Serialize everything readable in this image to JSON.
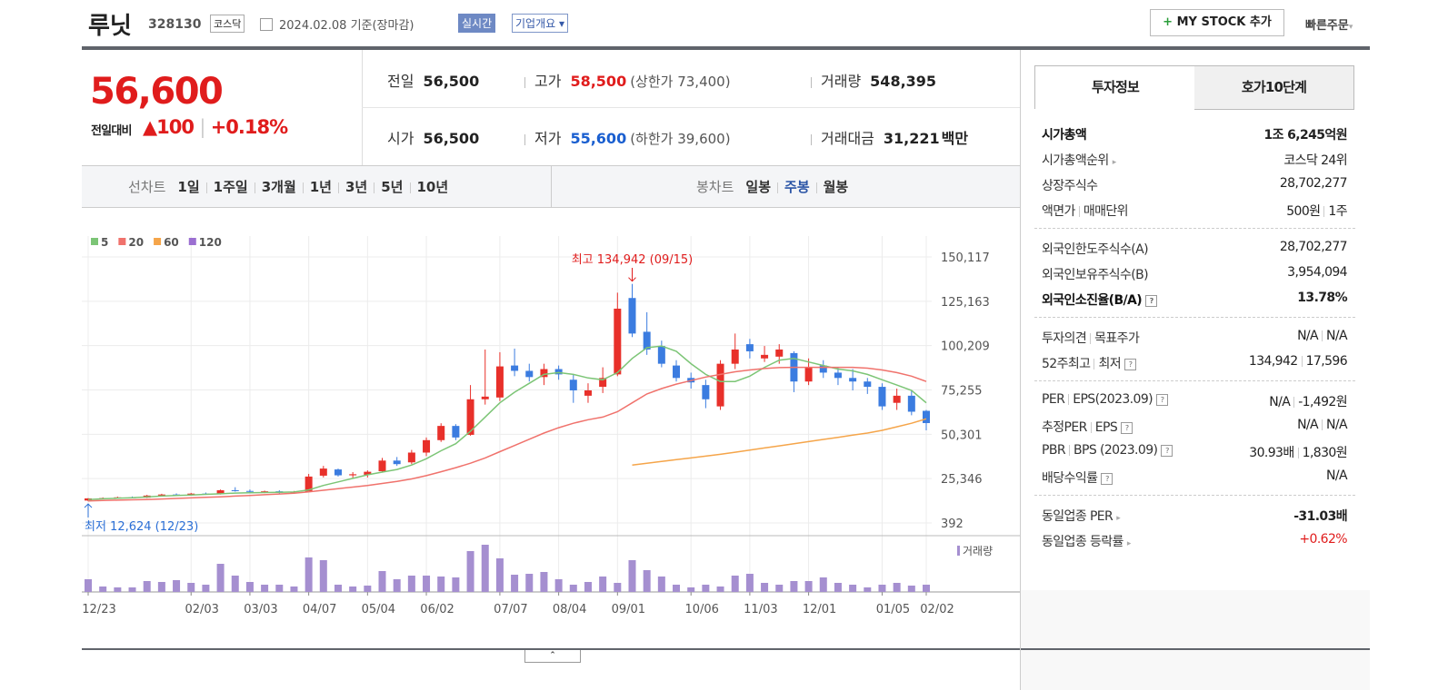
{
  "header": {
    "name": "루닛",
    "code": "328130",
    "market": "코스닥",
    "date": "2024.02.08 기준(장마감)",
    "realtime": "실시간",
    "overview": "기업개요",
    "mystock": "MY STOCK 추가",
    "quick_order": "빠른주문"
  },
  "quote": {
    "price": "56,600",
    "change_label": "전일대비",
    "change": "100",
    "change_rate": "+0.18%"
  },
  "summary": [
    {
      "label": "전일",
      "value": "56,500"
    },
    {
      "label": "고가",
      "value": "58,500",
      "sub": "(상한가 73,400)"
    },
    {
      "label": "거래량",
      "value": "548,395"
    },
    {
      "label": "시가",
      "value": "56,500"
    },
    {
      "label": "저가",
      "value": "55,600",
      "sub": "(하한가 39,600)"
    },
    {
      "label": "거래대금",
      "value": "31,221",
      "unit": "백만"
    }
  ],
  "line_tabs": {
    "title": "선차트",
    "items": [
      "1일",
      "1주일",
      "3개월",
      "1년",
      "3년",
      "5년",
      "10년"
    ]
  },
  "candle_tabs": {
    "title": "봉차트",
    "items": [
      "일봉",
      "주봉",
      "월봉"
    ],
    "active": 1
  },
  "chart": {
    "type": "candlestick",
    "up_color": "#e8302a",
    "down_color": "#3b7ce0",
    "volume_color": "#a58fd0",
    "volume_label": "거래량",
    "grid": true,
    "high_note": "최고 134,942 (09/15)",
    "low_note": "최저 12,624 (12/23)",
    "ylim": [
      -5740,
      161870
    ],
    "yticks": [
      {
        "value": 150117,
        "label": "150,117"
      },
      {
        "value": 125163,
        "label": "125,163"
      },
      {
        "value": 100209,
        "label": "100,209"
      },
      {
        "value": 75255,
        "label": "75,255"
      },
      {
        "value": 50301,
        "label": "50,301"
      },
      {
        "value": 25346,
        "label": "25,346"
      },
      392
    ],
    "volume_ylim": [
      0,
      60
    ],
    "categories": [
      "12/23",
      null,
      null,
      null,
      null,
      null,
      null,
      "02/03",
      null,
      null,
      null,
      "03/03",
      null,
      null,
      null,
      "04/07",
      null,
      null,
      null,
      "05/04",
      null,
      null,
      null,
      "06/02",
      null,
      null,
      null,
      null,
      "07/07",
      null,
      null,
      null,
      "08/04",
      null,
      null,
      null,
      "09/01",
      null,
      null,
      null,
      null,
      "10/06",
      null,
      null,
      null,
      "11/03",
      null,
      null,
      null,
      "12/01",
      null,
      null,
      null,
      null,
      "01/05",
      null,
      null,
      "02/02"
    ],
    "candles": [
      [
        13000,
        14400,
        12624,
        14200
      ],
      [
        14100,
        14800,
        13700,
        14400
      ],
      [
        14400,
        15200,
        14000,
        14800
      ],
      [
        14800,
        15300,
        14300,
        14500
      ],
      [
        14600,
        16200,
        14400,
        15800
      ],
      [
        15800,
        16800,
        15300,
        16400
      ],
      [
        16400,
        17000,
        15700,
        16000
      ],
      [
        16000,
        17300,
        15800,
        16900
      ],
      [
        16900,
        17500,
        16200,
        16600
      ],
      [
        16600,
        19200,
        16400,
        18800
      ],
      [
        18800,
        20500,
        18000,
        18400
      ],
      [
        18400,
        19200,
        17600,
        17900
      ],
      [
        17900,
        18600,
        17200,
        18200
      ],
      [
        18200,
        18800,
        17000,
        17300
      ],
      [
        17300,
        18400,
        16800,
        17600
      ],
      [
        18000,
        28000,
        17600,
        26500
      ],
      [
        27000,
        32500,
        26000,
        31000
      ],
      [
        30500,
        31000,
        26500,
        27200
      ],
      [
        27200,
        29000,
        25500,
        27800
      ],
      [
        27500,
        30000,
        26000,
        29200
      ],
      [
        29500,
        37000,
        29000,
        35500
      ],
      [
        35500,
        37500,
        32500,
        33500
      ],
      [
        34500,
        41500,
        33500,
        40000
      ],
      [
        40000,
        48500,
        38000,
        47000
      ],
      [
        47000,
        56500,
        46000,
        55000
      ],
      [
        55000,
        56000,
        47000,
        48500
      ],
      [
        50000,
        78000,
        49500,
        70000
      ],
      [
        70000,
        98000,
        67000,
        71500
      ],
      [
        71000,
        96500,
        69000,
        88500
      ],
      [
        89000,
        98500,
        83000,
        86000
      ],
      [
        86000,
        90000,
        80000,
        82500
      ],
      [
        82500,
        90000,
        78000,
        87000
      ],
      [
        87000,
        89000,
        81000,
        84000
      ],
      [
        81000,
        84000,
        68000,
        75000
      ],
      [
        72000,
        79000,
        68000,
        75000
      ],
      [
        77000,
        88000,
        73500,
        82000
      ],
      [
        84000,
        130000,
        83000,
        121000
      ],
      [
        127000,
        134942,
        105000,
        107000
      ],
      [
        108000,
        119000,
        95000,
        98000
      ],
      [
        100000,
        103000,
        88000,
        90000
      ],
      [
        89000,
        92000,
        80000,
        82000
      ],
      [
        82000,
        85000,
        76000,
        79500
      ],
      [
        78000,
        81000,
        65000,
        70000
      ],
      [
        66000,
        92000,
        64000,
        90000
      ],
      [
        90000,
        107000,
        87000,
        98000
      ],
      [
        101000,
        104000,
        93000,
        97000
      ],
      [
        93000,
        100000,
        91000,
        95000
      ],
      [
        94000,
        101000,
        90000,
        98000
      ],
      [
        96000,
        97000,
        74000,
        80000
      ],
      [
        80000,
        93000,
        78000,
        88000
      ],
      [
        89000,
        92000,
        82000,
        85000
      ],
      [
        85000,
        88000,
        78000,
        82000
      ],
      [
        82000,
        87000,
        75000,
        80000
      ],
      [
        80000,
        82000,
        73000,
        77000
      ],
      [
        77000,
        79000,
        64000,
        66000
      ],
      [
        68000,
        76000,
        64000,
        72000
      ],
      [
        72000,
        75000,
        61000,
        63000
      ],
      [
        63500,
        64000,
        52500,
        56600
      ]
    ],
    "volumes": [
      14,
      6,
      5,
      5,
      12,
      11,
      13,
      10,
      8,
      31,
      18,
      11,
      8,
      8,
      6,
      38,
      35,
      8,
      6,
      7,
      23,
      14,
      18,
      18,
      17,
      16,
      45,
      52,
      37,
      19,
      20,
      22,
      14,
      8,
      11,
      17,
      10,
      35,
      24,
      17,
      8,
      5,
      8,
      6,
      18,
      20,
      10,
      8,
      12,
      12,
      16,
      10,
      8,
      5,
      8,
      10,
      7,
      8
    ],
    "series": [
      {
        "name": "5",
        "color": "#7cc576",
        "values": [
          13500,
          14000,
          14300,
          14600,
          15000,
          15500,
          15800,
          16100,
          16500,
          16800,
          17200,
          17400,
          17500,
          17600,
          17800,
          19000,
          21500,
          23500,
          25500,
          27500,
          29000,
          30500,
          33000,
          36500,
          41000,
          45000,
          52000,
          60000,
          68000,
          74000,
          79000,
          84000,
          85000,
          84000,
          82000,
          81000,
          85000,
          93000,
          99000,
          100000,
          97000,
          90000,
          84000,
          80000,
          80000,
          83000,
          88000,
          92000,
          93000,
          91000,
          89000,
          87000,
          86000,
          84000,
          81000,
          78000,
          75000,
          68000
        ]
      },
      {
        "name": "20",
        "color": "#f0726c",
        "values": [
          12800,
          13000,
          13200,
          13400,
          13600,
          13900,
          14200,
          14500,
          14800,
          15100,
          15500,
          15900,
          16300,
          16700,
          17100,
          17900,
          18800,
          19700,
          20600,
          21500,
          22600,
          23800,
          25200,
          27000,
          29200,
          31500,
          34000,
          37000,
          40500,
          44000,
          47500,
          51000,
          54000,
          56500,
          58500,
          60000,
          63000,
          68000,
          73000,
          76000,
          78500,
          80500,
          82500,
          84000,
          85500,
          86500,
          87300,
          87800,
          88000,
          88000,
          88000,
          88000,
          88000,
          87500,
          86500,
          85000,
          83000,
          80000
        ]
      },
      {
        "name": "60",
        "color": "#f5a54a",
        "values": [
          null,
          null,
          null,
          null,
          null,
          null,
          null,
          null,
          null,
          null,
          null,
          null,
          null,
          null,
          null,
          null,
          null,
          null,
          null,
          null,
          null,
          null,
          null,
          null,
          null,
          null,
          null,
          null,
          null,
          null,
          null,
          null,
          null,
          null,
          null,
          null,
          null,
          33000,
          34000,
          35000,
          36000,
          37000,
          38000,
          39000,
          40200,
          41400,
          42600,
          43800,
          45000,
          46200,
          47400,
          48600,
          49800,
          51000,
          52500,
          54500,
          56500,
          59000
        ]
      },
      {
        "name": "120",
        "color": "#9b6fd1",
        "values": [
          null,
          null,
          null,
          null,
          null,
          null,
          null,
          null,
          null,
          null,
          null,
          null,
          null,
          null,
          null,
          null,
          null,
          null,
          null,
          null,
          null,
          null,
          null,
          null,
          null,
          null,
          null,
          null,
          null,
          null,
          null,
          null,
          null,
          null,
          null,
          null,
          null,
          null,
          null,
          null,
          null,
          null,
          null,
          null,
          null,
          null,
          null,
          null,
          null,
          null,
          null,
          null,
          null,
          null,
          null,
          null,
          null,
          null
        ]
      }
    ]
  },
  "invest_info": {
    "tabs": [
      "투자정보",
      "호가10단계"
    ],
    "groups": [
      [
        {
          "label": [
            "시가총액"
          ],
          "value": [
            "1조 6,245억원"
          ]
        },
        {
          "label": [
            "시가총액순위"
          ],
          "value": [
            "코스닥 24위"
          ]
        },
        {
          "label": [
            "상장주식수"
          ],
          "value": [
            "28,702,277"
          ]
        },
        {
          "label": [
            "액면가",
            "매매단위"
          ],
          "value": [
            "500원",
            "1주"
          ]
        }
      ],
      [
        {
          "label": [
            "외국인한도주식수(A)"
          ],
          "value": [
            "28,702,277"
          ]
        },
        {
          "label": [
            "외국인보유주식수(B)"
          ],
          "value": [
            "3,954,094"
          ]
        },
        {
          "label": [
            "외국인소진율(B/A)"
          ],
          "value": [
            "13.78%"
          ]
        }
      ],
      [
        {
          "label": [
            "투자의견",
            "목표주가"
          ],
          "value": [
            "N/A",
            "N/A"
          ]
        },
        {
          "label": [
            "52주최고",
            "최저"
          ],
          "value": [
            "134,942",
            "17,596"
          ]
        }
      ],
      [
        {
          "label": [
            "PER",
            "EPS(2023.09)"
          ],
          "value": [
            "N/A",
            "-1,492원"
          ]
        },
        {
          "label": [
            "추정PER",
            "EPS"
          ],
          "value": [
            "N/A",
            "N/A"
          ]
        },
        {
          "label": [
            "PBR",
            "BPS (2023.09)"
          ],
          "value": [
            "30.93배",
            "1,830원"
          ]
        },
        {
          "label": [
            "배당수익률"
          ],
          "value": [
            "N/A"
          ]
        }
      ],
      [
        {
          "label": [
            "동일업종 PER"
          ],
          "value": [
            "-31.03배"
          ]
        },
        {
          "label": [
            "동일업종 등락률"
          ],
          "value": [
            "+0.62%"
          ]
        }
      ]
    ]
  }
}
